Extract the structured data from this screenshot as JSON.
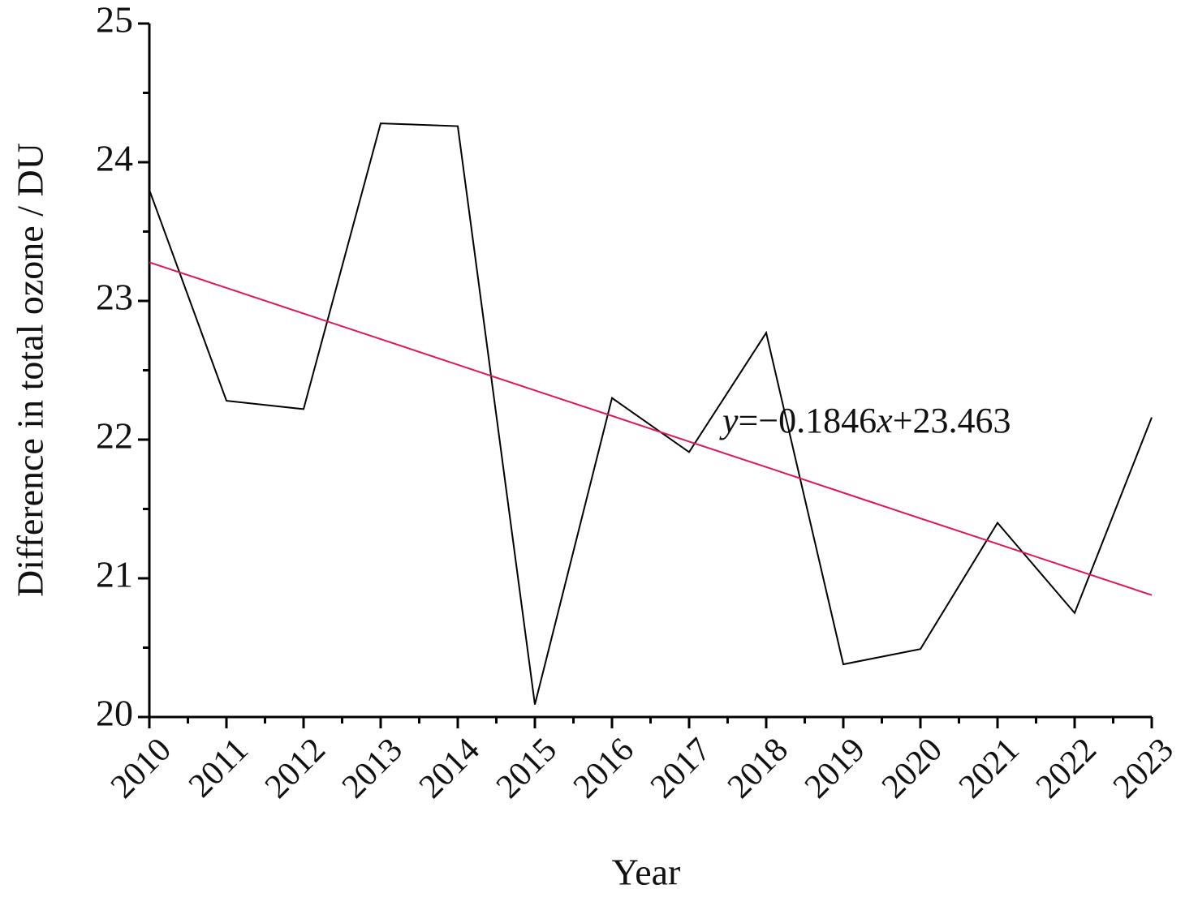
{
  "chart_data": {
    "type": "line",
    "x_label": "Year",
    "y_label": "Difference in total ozone / DU",
    "categories": [
      "2010",
      "2011",
      "2012",
      "2013",
      "2014",
      "2015",
      "2016",
      "2017",
      "2018",
      "2019",
      "2020",
      "2021",
      "2022",
      "2023"
    ],
    "series": [
      {
        "color": "#000000",
        "values": [
          23.8,
          22.28,
          22.22,
          24.28,
          24.26,
          20.09,
          22.3,
          21.91,
          22.77,
          20.38,
          20.49,
          21.4,
          20.75,
          22.16
        ]
      },
      {
        "color": "#e0155a",
        "values": [
          23.278,
          23.094,
          22.909,
          22.725,
          22.54,
          22.355,
          22.171,
          21.986,
          21.802,
          21.617,
          21.432,
          21.248,
          21.063,
          20.879
        ]
      }
    ],
    "annotation": [
      "y",
      "=−0.1846",
      "x",
      "+23.463"
    ],
    "annotation_color": "#e0155a",
    "ylim": [
      20,
      25
    ],
    "yticks": [
      20,
      21,
      22,
      23,
      24,
      25
    ]
  }
}
